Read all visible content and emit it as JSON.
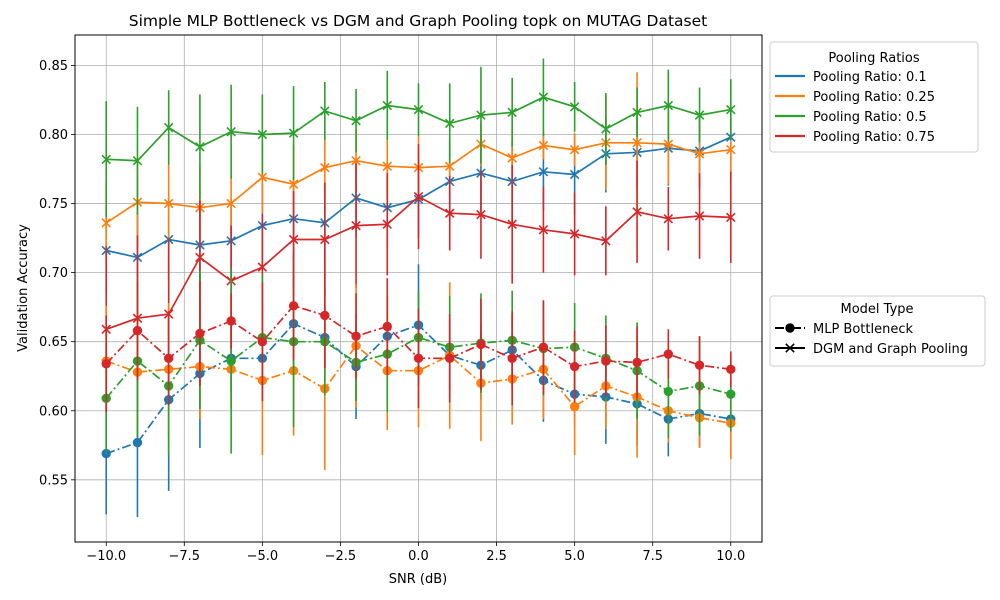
{
  "chart_data": {
    "type": "line",
    "title": "Simple MLP Bottleneck vs DGM and Graph Pooling topk on MUTAG Dataset",
    "xlabel": "SNR (dB)",
    "ylabel": "Validation Accuracy",
    "xlim": [
      -11.0,
      11.0
    ],
    "ylim": [
      0.505,
      0.872
    ],
    "grid": true,
    "x_ticks": [
      -10,
      -7.5,
      -5,
      -2.5,
      0,
      2.5,
      5,
      7.5,
      10
    ],
    "x_tick_labels": [
      "−10.0",
      "−7.5",
      "−5.0",
      "−2.5",
      "0.0",
      "2.5",
      "5.0",
      "7.5",
      "10.0"
    ],
    "y_ticks": [
      0.55,
      0.6,
      0.65,
      0.7,
      0.75,
      0.8,
      0.85
    ],
    "y_tick_labels": [
      "0.55",
      "0.60",
      "0.65",
      "0.70",
      "0.75",
      "0.80",
      "0.85"
    ],
    "x": [
      -10,
      -9,
      -8,
      -7,
      -6,
      -5,
      -4,
      -3,
      -2,
      -1,
      0,
      1,
      2,
      3,
      4,
      5,
      6,
      7,
      8,
      9,
      10
    ],
    "colors": {
      "0.1": "#1f77b4",
      "0.25": "#ff7f0e",
      "0.5": "#2ca02c",
      "0.75": "#d62728"
    },
    "legend_ratios": {
      "title": "Pooling Ratios",
      "placement": "outside upper-right",
      "entries": [
        {
          "key": "0.1",
          "label": "Pooling Ratio: 0.1"
        },
        {
          "key": "0.25",
          "label": "Pooling Ratio: 0.25"
        },
        {
          "key": "0.5",
          "label": "Pooling Ratio: 0.5"
        },
        {
          "key": "0.75",
          "label": "Pooling Ratio: 0.75"
        }
      ]
    },
    "legend_models": {
      "title": "Model Type",
      "placement": "outside center-right",
      "entries": [
        {
          "key": "mlp",
          "label": "MLP Bottleneck",
          "marker": "circle",
          "linestyle": "dash-dot"
        },
        {
          "key": "dgm",
          "label": "DGM and Graph Pooling",
          "marker": "x",
          "linestyle": "solid"
        }
      ]
    },
    "series": [
      {
        "ratio": "0.1",
        "model": "dgm",
        "values": [
          0.716,
          0.711,
          0.724,
          0.72,
          0.723,
          0.734,
          0.739,
          0.736,
          0.754,
          0.747,
          0.753,
          0.766,
          0.772,
          0.766,
          0.773,
          0.771,
          0.786,
          0.787,
          0.79,
          0.788,
          0.798
        ],
        "errors": [
          0.032,
          0.033,
          0.03,
          0.032,
          0.03,
          0.03,
          0.03,
          0.03,
          0.028,
          0.029,
          0.028,
          0.03,
          0.028,
          0.029,
          0.028,
          0.029,
          0.028,
          0.027,
          0.027,
          0.027,
          0.026
        ]
      },
      {
        "ratio": "0.25",
        "model": "dgm",
        "values": [
          0.736,
          0.751,
          0.75,
          0.747,
          0.75,
          0.769,
          0.764,
          0.776,
          0.781,
          0.777,
          0.776,
          0.777,
          0.793,
          0.783,
          0.792,
          0.789,
          0.794,
          0.794,
          0.793,
          0.786,
          0.789
        ],
        "errors": [
          0.03,
          0.03,
          0.028,
          0.03,
          0.02,
          0.026,
          0.028,
          0.022,
          0.022,
          0.02,
          0.023,
          0.02,
          0.016,
          0.021,
          0.01,
          0.012,
          0.034,
          0.051,
          0.029,
          0.023,
          0.023
        ]
      },
      {
        "ratio": "0.5",
        "model": "dgm",
        "values": [
          0.782,
          0.781,
          0.805,
          0.791,
          0.802,
          0.8,
          0.801,
          0.817,
          0.81,
          0.821,
          0.818,
          0.808,
          0.814,
          0.816,
          0.827,
          0.82,
          0.804,
          0.816,
          0.821,
          0.814,
          0.818
        ],
        "errors": [
          0.042,
          0.039,
          0.027,
          0.038,
          0.034,
          0.029,
          0.034,
          0.021,
          0.023,
          0.025,
          0.019,
          0.029,
          0.035,
          0.025,
          0.028,
          0.018,
          0.026,
          0.018,
          0.026,
          0.02,
          0.022
        ]
      },
      {
        "ratio": "0.75",
        "model": "dgm",
        "values": [
          0.659,
          0.667,
          0.67,
          0.711,
          0.694,
          0.704,
          0.724,
          0.724,
          0.734,
          0.735,
          0.755,
          0.743,
          0.742,
          0.735,
          0.731,
          0.728,
          0.723,
          0.744,
          0.739,
          0.741,
          0.74
        ],
        "errors": [
          0.06,
          0.06,
          0.055,
          0.042,
          0.04,
          0.038,
          0.035,
          0.041,
          0.045,
          0.037,
          0.038,
          0.027,
          0.032,
          0.043,
          0.031,
          0.03,
          0.025,
          0.037,
          0.023,
          0.031,
          0.033
        ]
      },
      {
        "ratio": "0.1",
        "model": "mlp",
        "values": [
          0.569,
          0.577,
          0.608,
          0.627,
          0.638,
          0.638,
          0.663,
          0.653,
          0.632,
          0.654,
          0.662,
          0.64,
          0.633,
          0.644,
          0.622,
          0.612,
          0.61,
          0.605,
          0.594,
          0.598,
          0.594
        ],
        "errors": [
          0.044,
          0.054,
          0.066,
          0.054,
          0.025,
          0.022,
          0.034,
          0.023,
          0.038,
          0.029,
          0.044,
          0.025,
          0.025,
          0.026,
          0.03,
          0.022,
          0.034,
          0.03,
          0.027,
          0.024,
          0.028
        ]
      },
      {
        "ratio": "0.25",
        "model": "mlp",
        "values": [
          0.636,
          0.628,
          0.63,
          0.632,
          0.63,
          0.622,
          0.629,
          0.616,
          0.647,
          0.629,
          0.629,
          0.64,
          0.62,
          0.623,
          0.63,
          0.603,
          0.618,
          0.61,
          0.6,
          0.595,
          0.591
        ],
        "errors": [
          0.04,
          0.04,
          0.048,
          0.038,
          0.028,
          0.054,
          0.047,
          0.059,
          0.045,
          0.043,
          0.041,
          0.053,
          0.042,
          0.033,
          0.036,
          0.035,
          0.031,
          0.044,
          0.023,
          0.022,
          0.026
        ]
      },
      {
        "ratio": "0.5",
        "model": "mlp",
        "values": [
          0.609,
          0.636,
          0.618,
          0.651,
          0.636,
          0.653,
          0.65,
          0.65,
          0.635,
          0.641,
          0.653,
          0.646,
          0.649,
          0.651,
          0.645,
          0.646,
          0.638,
          0.629,
          0.614,
          0.618,
          0.612
        ],
        "errors": [
          0.04,
          0.055,
          0.05,
          0.05,
          0.067,
          0.046,
          0.062,
          0.039,
          0.028,
          0.042,
          0.034,
          0.037,
          0.036,
          0.036,
          0.034,
          0.032,
          0.031,
          0.035,
          0.034,
          0.036,
          0.027
        ]
      },
      {
        "ratio": "0.75",
        "model": "mlp",
        "values": [
          0.634,
          0.658,
          0.638,
          0.656,
          0.665,
          0.65,
          0.676,
          0.669,
          0.654,
          0.661,
          0.638,
          0.638,
          0.648,
          0.638,
          0.646,
          0.632,
          0.636,
          0.635,
          0.641,
          0.633,
          0.63
        ],
        "errors": [
          0.035,
          0.036,
          0.034,
          0.038,
          0.02,
          0.043,
          0.039,
          0.038,
          0.031,
          0.035,
          0.036,
          0.032,
          0.033,
          0.034,
          0.034,
          0.026,
          0.026,
          0.026,
          0.018,
          0.021,
          0.013
        ]
      }
    ]
  }
}
